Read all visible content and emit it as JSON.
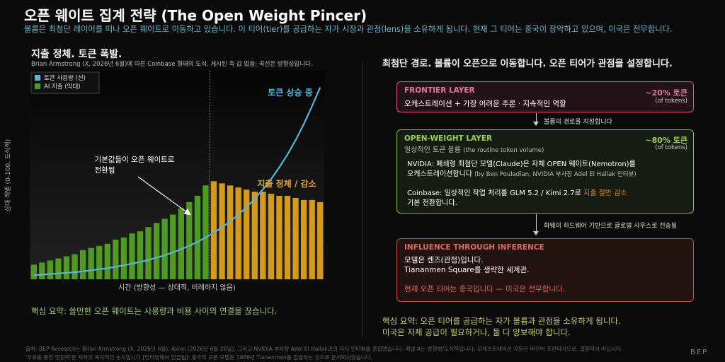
{
  "header": {
    "title": "오픈 웨이트 집계 전략 (The Open Weight Pincer)",
    "subtitle": "볼륨은 최첨단 레이어를 떠나 오픈 웨이트로 이동하고 있습니다. 이 티어(tier)를 공급하는 자가 시장과 관점(lens)을 소유하게 됩니다. 현재 그 티어는 중국이 장악하고 있으며, 미국은 전무합니다."
  },
  "left_panel": {
    "heading": "지출 정체. 토큰 폭발.",
    "caption": "Brian Armstrong (X, 2026년 6월)에 따른 Coinbase 형태의 도식. 게시된 축 값 없음; 곡선은 방향성입니다.",
    "takeaway": "핵심 요약: 쓸만한 오픈 웨이트는 사용량과 비용 사이의 연결을 끊습니다."
  },
  "chart_data": {
    "type": "bar",
    "y_label": "상대 레벨 (0-100, 도식적)",
    "x_label": "시간 (방향성 — 상대적, 비례하지 않음)",
    "ylim": [
      0,
      100
    ],
    "legend": "upper left",
    "annotation_line": "토큰 상승 중",
    "annotation_shift": [
      "기본값들이 오픈 웨이트로",
      "전환됨"
    ],
    "annotation_spend": "지출 정체 / 감소",
    "series": [
      {
        "name": "토큰 사용량 (선)",
        "type": "line",
        "color": "#5ab4d8",
        "values": [
          2.0,
          2.2,
          2.5,
          2.8,
          3.1,
          3.4,
          3.8,
          4.3,
          4.8,
          5.3,
          6.0,
          6.7,
          7.5,
          8.3,
          9.3,
          10.4,
          11.5,
          12.9,
          14.4,
          16.1,
          17.9,
          20.0,
          22.3,
          24.9,
          27.8,
          31.0,
          34.6,
          38.6,
          43.1,
          48.0,
          53.6,
          59.8,
          66.7,
          74.4,
          83.0,
          92.0
        ]
      },
      {
        "name": "AI 지출 (막대)",
        "type": "bar",
        "color": "#4e9a22",
        "values": [
          7,
          8,
          9,
          10,
          11,
          12,
          14,
          15,
          16,
          17,
          19,
          20,
          22,
          23,
          25,
          27,
          29,
          31,
          34,
          37,
          40,
          45,
          47,
          46,
          45,
          44,
          43,
          42,
          42,
          41,
          40,
          40,
          39,
          38,
          38,
          37
        ],
        "colors": [
          "#4e9a22",
          "#4e9a22",
          "#4e9a22",
          "#4e9a22",
          "#4e9a22",
          "#4e9a22",
          "#4e9a22",
          "#4e9a22",
          "#4e9a22",
          "#4e9a22",
          "#4e9a22",
          "#4e9a22",
          "#4e9a22",
          "#4e9a22",
          "#4e9a22",
          "#4e9a22",
          "#4e9a22",
          "#4e9a22",
          "#4e9a22",
          "#4e9a22",
          "#4e9a22",
          "#4e9a22",
          "#d49a1e",
          "#d49a1e",
          "#d49a1e",
          "#d49a1e",
          "#d49a1e",
          "#d49a1e",
          "#d49a1e",
          "#d49a1e",
          "#d49a1e",
          "#d49a1e",
          "#d49a1e",
          "#d49a1e",
          "#d49a1e",
          "#d49a1e"
        ]
      }
    ]
  },
  "right_panel": {
    "heading": "최첨단 경로. 볼륨이 오픈으로 이동합니다. 오픈 티어가 관점을 설정합니다.",
    "frontier": {
      "title": "FRONTIER LAYER",
      "share": "~20% 토큰",
      "share_note": "(of tokens)",
      "body": "오케스트레이션 + 가장 어려운 추론 · 지속적인 역할"
    },
    "arrow_1": "볼륨의 경로를 지정합니다",
    "open_weight": {
      "title": "OPEN-WEIGHT LAYER",
      "share": "~80% 토큰",
      "share_note": "(of tokens)",
      "subtitle": "일상적인 토큰 볼륨",
      "subtitle_en": "(the routine token volume)",
      "nvidia": [
        "NVIDIA: 폐쇄형 최첨단 모델(Claude)은 자체 OPEN 웨이트(Nemotron)를",
        "오케스트레이션합니다"
      ],
      "nvidia_source": "(by Ben Pouladian, NVIDIA 부사장 Adel El Hallak 인터뷰)",
      "coinbase": "Coinbase: 일상적인 작업 처리를 GLM 5.2 / Kimi 2.7로",
      "coinbase_highlight": "지출 절반 감소",
      "coinbase_end": "기본 전환합니다."
    },
    "arrow_2": "화웨이 하드웨어 기반으로 글로벌 사우스로 전송됨",
    "influence": {
      "title": "INFLUENCE THROUGH INFERENCE",
      "lines": [
        "모델은 렌즈(관점)입니다.",
        "Tiananmen Square를 생략한 세계관."
      ],
      "conclusion": "현재 오픈 티어는 중국입니다 — 미국은 전무합니다."
    },
    "takeaway": [
      "핵심 요약: 오픈 티어를 공급하는 자가 볼륨과 관점을 소유하게 됩니다.",
      "미국은 자체 공급이 필요하거나, 둘 다 양보해야 합니다."
    ]
  },
  "footer": [
    "출처: BEP Research는 Brian Armstrong (X, 2026년 6월), Axios (2026년 6월 26일), 그리고 NVIDIA 부사장 Adel El Hallak과의 자지 인터뷰를 종합했습니다. 패널 A는 방향성/도식적입니다; 오케스트레이션 지원은 바꾸어 프런티어으로, 결론적이 아닙니다.",
    "'무료를 통한 영향력'은 저자의 독자적인 논지입니다 [인터뷰에서 언급됨]: 중국의 오픈 모델은 1989년 Tiananmen를 검열하는 것으로 문서화되었습니다."
  ],
  "logo": "BEP"
}
